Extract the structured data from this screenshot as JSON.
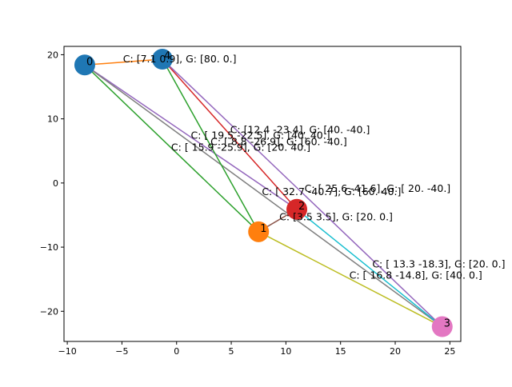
{
  "chart_data": {
    "type": "scatter",
    "title": "",
    "xlabel": "",
    "ylabel": "",
    "xlim": [
      -10.3,
      26.0
    ],
    "ylim": [
      -24.7,
      21.3
    ],
    "xticks": [
      -10,
      -5,
      0,
      5,
      10,
      15,
      20,
      25
    ],
    "yticks": [
      -20,
      -10,
      0,
      10,
      20
    ],
    "grid": false,
    "nodes": [
      {
        "id": "0",
        "x": -8.4,
        "y": 18.4,
        "color": "#1f77b4"
      },
      {
        "id": "1",
        "x": 7.5,
        "y": -7.6,
        "color": "#ff7f0e"
      },
      {
        "id": "2",
        "x": 11.0,
        "y": -4.1,
        "color": "#d62728"
      },
      {
        "id": "3",
        "x": 24.3,
        "y": -22.4,
        "color": "#e377c2"
      },
      {
        "id": "4",
        "x": -1.3,
        "y": 19.3,
        "color": "#1f77b4"
      }
    ],
    "edges": [
      {
        "from": "0",
        "to": "4",
        "color": "#ff7f0e"
      },
      {
        "from": "0",
        "to": "1",
        "color": "#2ca02c"
      },
      {
        "from": "0",
        "to": "2",
        "color": "#9467bd"
      },
      {
        "from": "0",
        "to": "3",
        "color": "#7f7f7f"
      },
      {
        "from": "4",
        "to": "1",
        "color": "#2ca02c"
      },
      {
        "from": "4",
        "to": "2",
        "color": "#d62728"
      },
      {
        "from": "4",
        "to": "3",
        "color": "#9467bd"
      },
      {
        "from": "1",
        "to": "2",
        "color": "#8c564b"
      },
      {
        "from": "1",
        "to": "3",
        "color": "#bcbd22"
      },
      {
        "from": "2",
        "to": "3",
        "color": "#17becf"
      }
    ],
    "edge_labels": [
      {
        "text": "C: [7.1 0.9], G: [80.  0.]",
        "x": -4.9,
        "y": 19.3
      },
      {
        "text": "C: [12.4 -23.4], G: [40. -40.]",
        "x": 4.9,
        "y": 8.3
      },
      {
        "text": "C: [ 19.5 -22.5], G: [40. 40.]",
        "x": 1.3,
        "y": 7.4
      },
      {
        "text": "C: [ 8.8 -26.9], G: [60. -40.]",
        "x": 3.1,
        "y": 6.4
      },
      {
        "text": "C: [ 15.9 -25.9], G: [20. 40.]",
        "x": -0.5,
        "y": 5.5
      },
      {
        "text": "C: [ 25.6 -41.6], G: [ 20. -40.]",
        "x": 11.7,
        "y": -0.9
      },
      {
        "text": "C: [ 32.7 -40.7], G: [60. 40.]",
        "x": 7.8,
        "y": -1.4
      },
      {
        "text": "C: [3.5 3.5], G: [20.  0.]",
        "x": 9.4,
        "y": -5.3
      },
      {
        "text": "C: [ 13.3 -18.3], G: [20.  0.]",
        "x": 17.9,
        "y": -12.7
      },
      {
        "text": "C: [ 16.8 -14.8], G: [40.  0.]",
        "x": 15.8,
        "y": -14.4
      }
    ]
  }
}
